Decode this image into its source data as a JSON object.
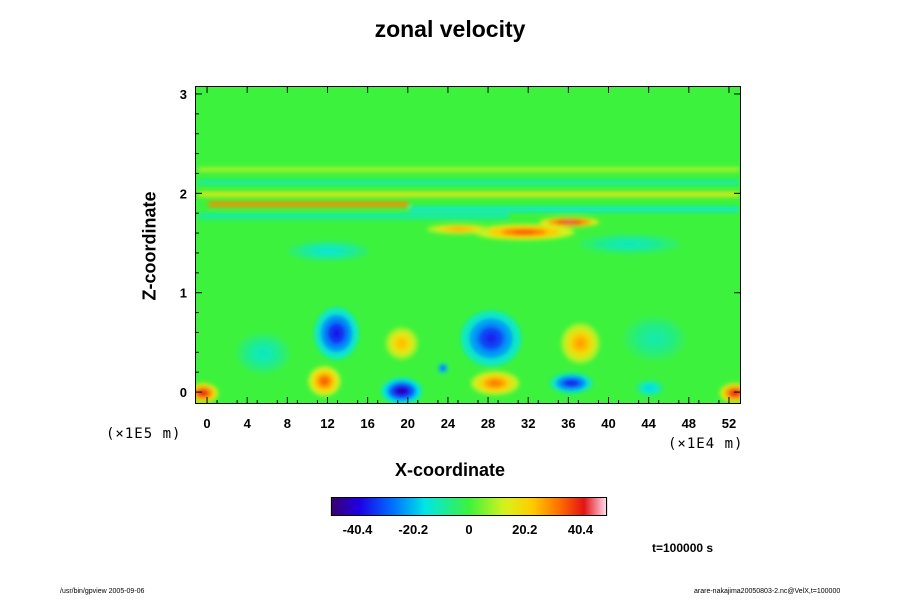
{
  "chart_data": {
    "type": "heatmap",
    "title": "zonal velocity",
    "xlabel": "X-coordinate",
    "ylabel": "Z-coordinate",
    "x_scale_note": "(×1E4 m)",
    "y_scale_note": "(×1E5 m)",
    "x_range": [
      -1.2,
      53.2
    ],
    "y_range": [
      -0.12,
      3.08
    ],
    "x_ticks": [
      0,
      4,
      8,
      12,
      16,
      20,
      24,
      28,
      32,
      36,
      40,
      44,
      48,
      52
    ],
    "y_ticks": [
      0,
      1,
      2,
      3
    ],
    "colorbar": {
      "range": [
        -50,
        50
      ],
      "ticks": [
        -40.4,
        -20.2,
        0,
        20.2,
        40.4
      ],
      "tick_labels": [
        "-40.4",
        "-20.2",
        "0",
        "20.2",
        "40.4"
      ]
    },
    "colors": {
      "background_field": "#3df23d",
      "min_color": "#3a0070",
      "max_color": "#ffd8ec"
    },
    "features": [
      {
        "kind": "blob",
        "x": 12.8,
        "z": 0.6,
        "rx": 2.2,
        "rz": 0.26,
        "v": -38
      },
      {
        "kind": "blob",
        "x": 19.3,
        "z": 0.5,
        "rx": 1.6,
        "rz": 0.16,
        "v": 25
      },
      {
        "kind": "blob",
        "x": 28.2,
        "z": 0.55,
        "rx": 3.0,
        "rz": 0.28,
        "v": -36
      },
      {
        "kind": "blob",
        "x": 37.1,
        "z": 0.5,
        "rx": 1.9,
        "rz": 0.2,
        "v": 28
      },
      {
        "kind": "blob",
        "x": 5.5,
        "z": 0.4,
        "rx": 2.6,
        "rz": 0.2,
        "v": -12
      },
      {
        "kind": "blob",
        "x": 44.5,
        "z": 0.55,
        "rx": 3.0,
        "rz": 0.22,
        "v": -10
      },
      {
        "kind": "blob",
        "x": 11.6,
        "z": 0.12,
        "rx": 1.6,
        "rz": 0.15,
        "v": 35
      },
      {
        "kind": "blob",
        "x": 19.3,
        "z": 0.02,
        "rx": 2.0,
        "rz": 0.13,
        "v": -45
      },
      {
        "kind": "blob",
        "x": 28.6,
        "z": 0.1,
        "rx": 2.4,
        "rz": 0.12,
        "v": 32
      },
      {
        "kind": "blob",
        "x": 36.2,
        "z": 0.1,
        "rx": 2.1,
        "rz": 0.1,
        "v": -38
      },
      {
        "kind": "blob",
        "x": -0.5,
        "z": 0.0,
        "rx": 1.5,
        "rz": 0.1,
        "v": 42
      },
      {
        "kind": "blob",
        "x": 52.5,
        "z": 0.0,
        "rx": 1.5,
        "rz": 0.1,
        "v": 42
      },
      {
        "kind": "blob",
        "x": 44.0,
        "z": 0.05,
        "rx": 1.4,
        "rz": 0.08,
        "v": -18
      },
      {
        "kind": "blob",
        "x": 23.4,
        "z": 0.25,
        "rx": 0.5,
        "rz": 0.05,
        "v": -40
      },
      {
        "kind": "blob",
        "x": 31.5,
        "z": 1.62,
        "rx": 5.0,
        "rz": 0.08,
        "v": 36
      },
      {
        "kind": "blob",
        "x": 36.0,
        "z": 1.72,
        "rx": 3.0,
        "rz": 0.05,
        "v": 45
      },
      {
        "kind": "blob",
        "x": 25.0,
        "z": 1.65,
        "rx": 3.2,
        "rz": 0.05,
        "v": 28
      },
      {
        "kind": "blob",
        "x": 12.0,
        "z": 1.43,
        "rx": 4.0,
        "rz": 0.1,
        "v": -14
      },
      {
        "kind": "blob",
        "x": 42.0,
        "z": 1.5,
        "rx": 5.0,
        "rz": 0.1,
        "v": -12
      },
      {
        "kind": "band",
        "z": 1.9,
        "hw": 0.025,
        "x0": 0,
        "x1": 20,
        "v": 30
      },
      {
        "kind": "band",
        "z": 1.85,
        "hw": 0.025,
        "x0": 20,
        "x1": 53,
        "v": -14
      },
      {
        "kind": "band",
        "z": 2.0,
        "hw": 0.025,
        "x0": -1,
        "x1": 53,
        "v": 16
      },
      {
        "kind": "band",
        "z": 2.12,
        "hw": 0.02,
        "x0": -1,
        "x1": 53,
        "v": -12
      },
      {
        "kind": "band",
        "z": 2.25,
        "hw": 0.02,
        "x0": -1,
        "x1": 53,
        "v": 10
      },
      {
        "kind": "band",
        "z": 1.78,
        "hw": 0.03,
        "x0": -1,
        "x1": 30,
        "v": -10
      }
    ]
  },
  "labels": {
    "time": "t=100000 s",
    "footer_left": "/usr/bin/gpview 2005-09-06",
    "footer_right": "arare-nakajima20050803-2.nc@VelX,t=100000"
  }
}
